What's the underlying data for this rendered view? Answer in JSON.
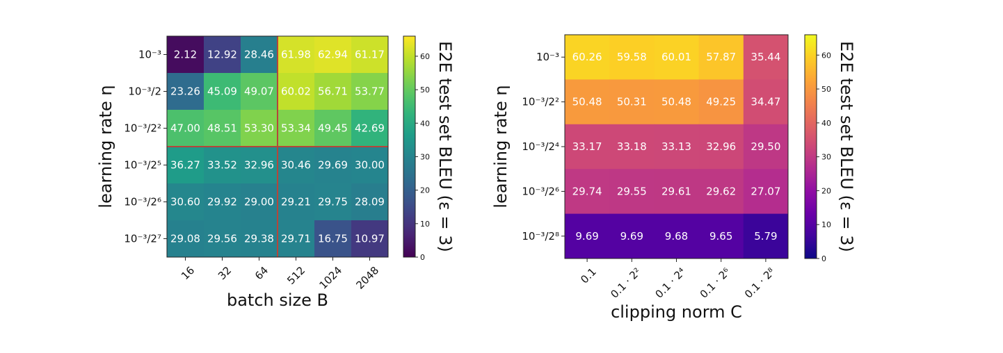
{
  "chart_data": [
    {
      "type": "heatmap",
      "colormap": "viridis",
      "xlabel": "batch size B",
      "ylabel": "learning rate η",
      "colorbar_label": "E2E test set BLEU (ε = 3)",
      "colorbar_ticks": [
        "0",
        "10",
        "20",
        "30",
        "40",
        "50",
        "60"
      ],
      "colorbar_range": [
        0,
        66
      ],
      "x_tick_labels": [
        "16",
        "32",
        "64",
        "512",
        "1024",
        "2048"
      ],
      "y_tick_labels": [
        "10⁻³",
        "10⁻³/2",
        "10⁻³/2²",
        "10⁻³/2⁵",
        "10⁻³/2⁶",
        "10⁻³/2⁷"
      ],
      "values": [
        [
          2.12,
          12.92,
          28.46,
          61.98,
          62.94,
          61.17
        ],
        [
          23.26,
          45.09,
          49.07,
          60.02,
          56.71,
          53.77
        ],
        [
          47.0,
          48.51,
          53.3,
          53.34,
          49.45,
          42.69
        ],
        [
          36.27,
          33.52,
          32.96,
          30.46,
          29.69,
          30.0
        ],
        [
          30.6,
          29.92,
          29.0,
          29.21,
          29.75,
          28.09
        ],
        [
          29.08,
          29.56,
          29.38,
          29.71,
          16.75,
          10.97
        ]
      ],
      "cell_labels": [
        [
          "2.12",
          "12.92",
          "28.46",
          "61.98",
          "62.94",
          "61.17"
        ],
        [
          "23.26",
          "45.09",
          "49.07",
          "60.02",
          "56.71",
          "53.77"
        ],
        [
          "47.00",
          "48.51",
          "53.30",
          "53.34",
          "49.45",
          "42.69"
        ],
        [
          "36.27",
          "33.52",
          "32.96",
          "30.46",
          "29.69",
          "30.00"
        ],
        [
          "30.60",
          "29.92",
          "29.00",
          "29.21",
          "29.75",
          "28.09"
        ],
        [
          "29.08",
          "29.56",
          "29.38",
          "29.71",
          "16.75",
          "10.97"
        ]
      ],
      "divider_color": "#b5463a",
      "dividers": {
        "after_column_index": 2,
        "after_row_index": 2
      }
    },
    {
      "type": "heatmap",
      "colormap": "plasma",
      "xlabel": "clipping norm C",
      "ylabel": "learning rate η",
      "colorbar_label": "E2E test set BLEU (ε = 3)",
      "colorbar_ticks": [
        "0",
        "10",
        "20",
        "30",
        "40",
        "50",
        "60"
      ],
      "colorbar_range": [
        0,
        66
      ],
      "x_tick_labels": [
        "0.1",
        "0.1 · 2²",
        "0.1 · 2⁴",
        "0.1 · 2⁶",
        "0.1 · 2⁸"
      ],
      "y_tick_labels": [
        "10⁻³",
        "10⁻³/2²",
        "10⁻³/2⁴",
        "10⁻³/2⁶",
        "10⁻³/2⁸"
      ],
      "values": [
        [
          60.26,
          59.58,
          60.01,
          57.87,
          35.44
        ],
        [
          50.48,
          50.31,
          50.48,
          49.25,
          34.47
        ],
        [
          33.17,
          33.18,
          33.13,
          32.96,
          29.5
        ],
        [
          29.74,
          29.55,
          29.61,
          29.62,
          27.07
        ],
        [
          9.69,
          9.69,
          9.68,
          9.65,
          5.79
        ]
      ],
      "cell_labels": [
        [
          "60.26",
          "59.58",
          "60.01",
          "57.87",
          "35.44"
        ],
        [
          "50.48",
          "50.31",
          "50.48",
          "49.25",
          "34.47"
        ],
        [
          "33.17",
          "33.18",
          "33.13",
          "32.96",
          "29.50"
        ],
        [
          "29.74",
          "29.55",
          "29.61",
          "29.62",
          "27.07"
        ],
        [
          "9.69",
          "9.69",
          "9.68",
          "9.65",
          "5.79"
        ]
      ]
    }
  ]
}
